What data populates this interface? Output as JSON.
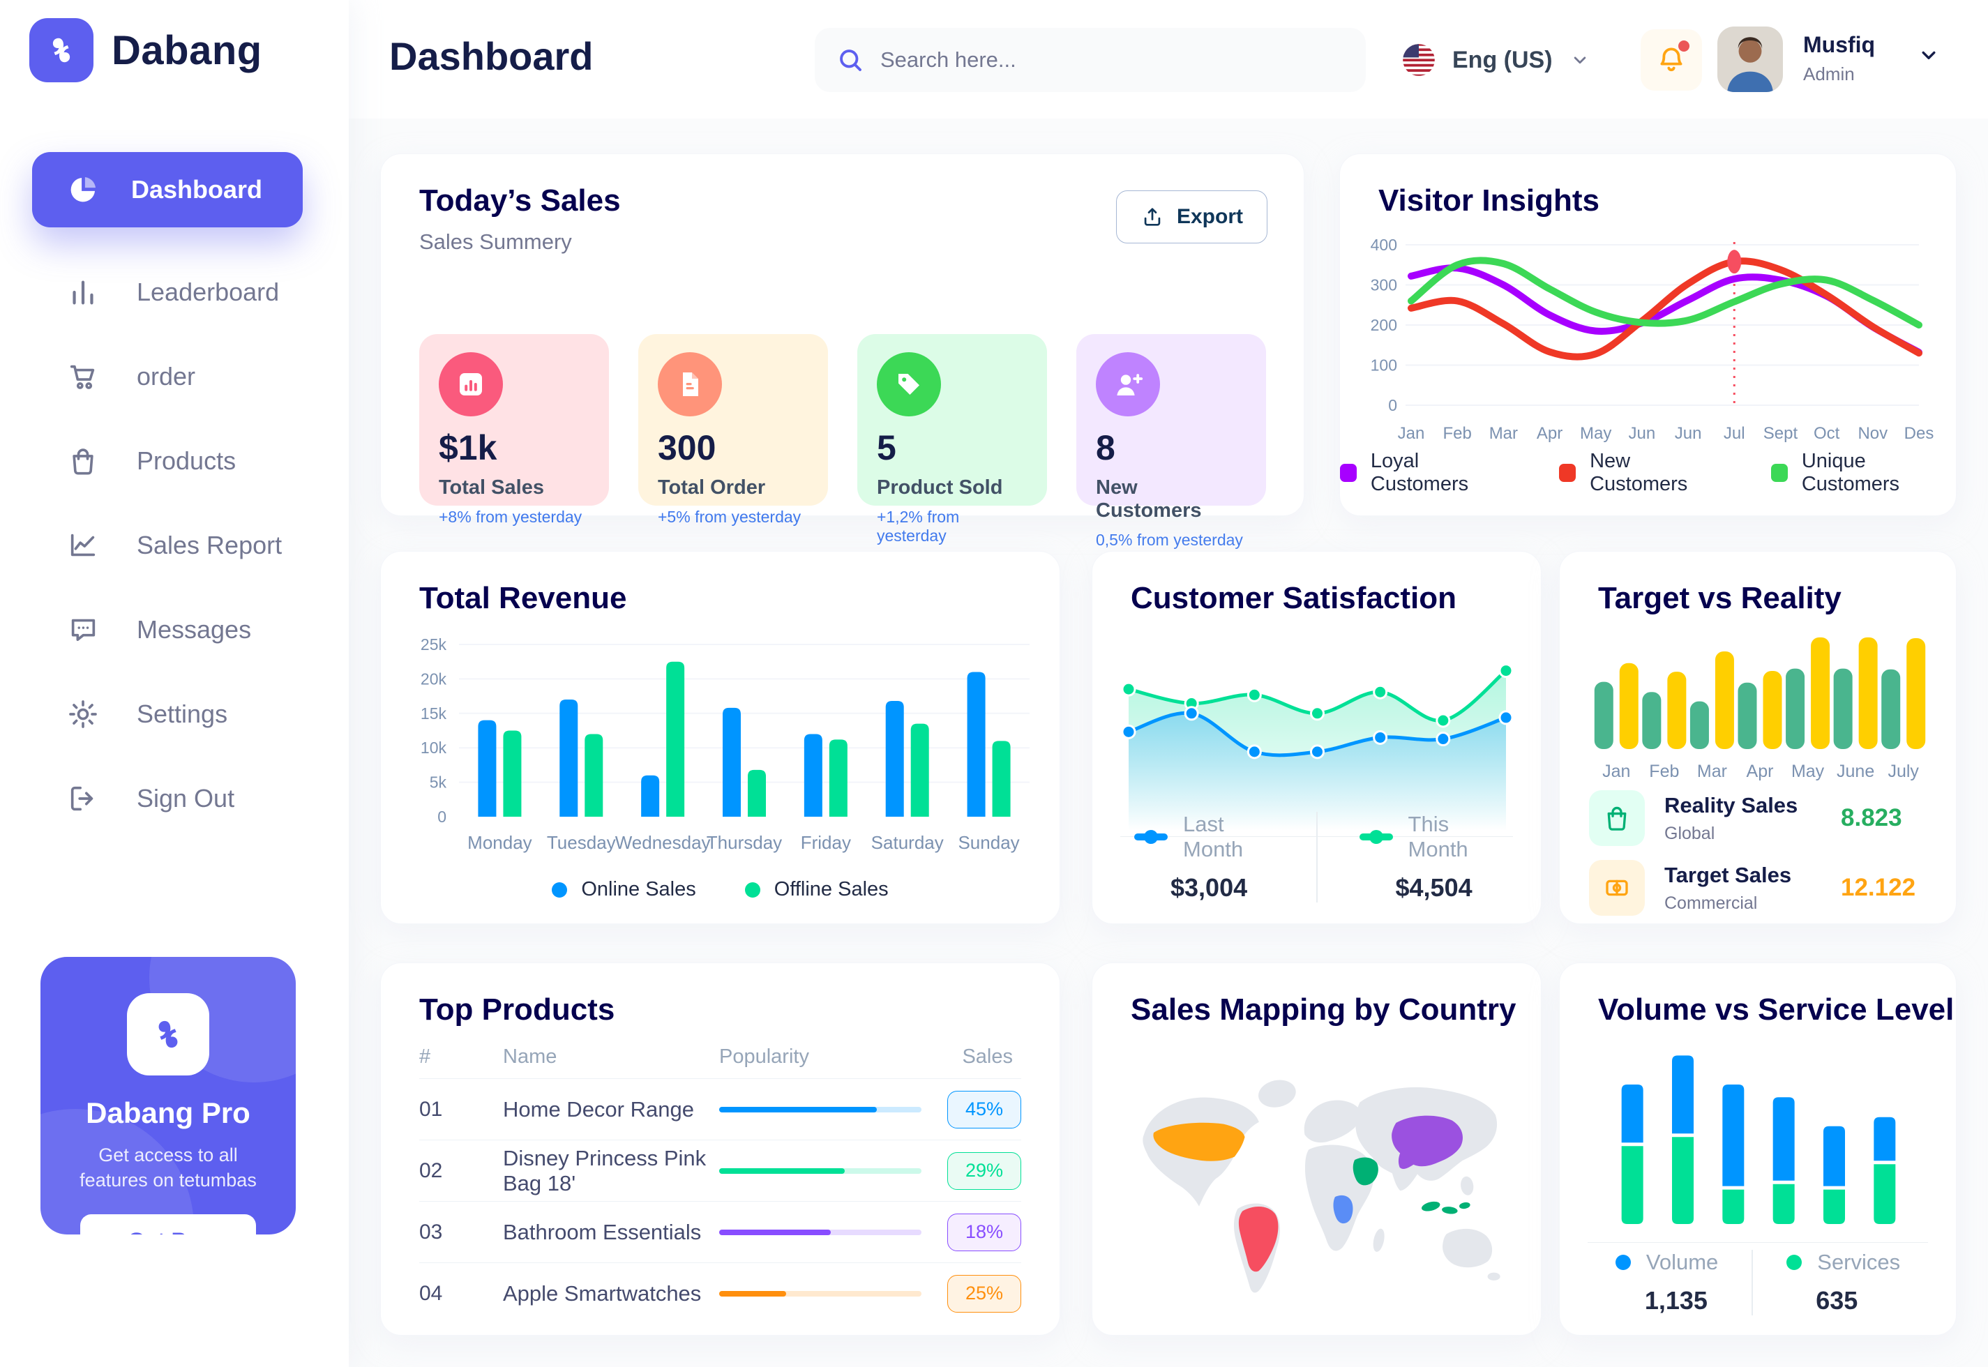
{
  "app": {
    "brand": "Dabang",
    "accent": "#5D5FEF"
  },
  "sidebar": {
    "items": [
      {
        "label": "Dashboard",
        "icon": "pie-chart-icon",
        "active": true
      },
      {
        "label": "Leaderboard",
        "icon": "bar-chart-icon",
        "active": false
      },
      {
        "label": "order",
        "icon": "cart-icon",
        "active": false
      },
      {
        "label": "Products",
        "icon": "bag-icon",
        "active": false
      },
      {
        "label": "Sales Report",
        "icon": "line-chart-icon",
        "active": false
      },
      {
        "label": "Messages",
        "icon": "message-icon",
        "active": false
      },
      {
        "label": "Settings",
        "icon": "gear-icon",
        "active": false
      },
      {
        "label": "Sign Out",
        "icon": "sign-out-icon",
        "active": false
      }
    ],
    "pro": {
      "title": "Dabang Pro",
      "subtitle": "Get access to all features on tetumbas",
      "cta": "Get Pro"
    }
  },
  "header": {
    "title": "Dashboard",
    "search_placeholder": "Search here...",
    "language": "Eng (US)",
    "user": {
      "name": "Musfiq",
      "role": "Admin"
    }
  },
  "today_sales": {
    "title": "Today’s Sales",
    "subtitle": "Sales Summery",
    "export_label": "Export",
    "cards": [
      {
        "value": "$1k",
        "label": "Total Sales",
        "note": "+8% from yesterday",
        "bg": "#FFE2E5",
        "accent": "#FA5A7D",
        "icon": "chart-icon"
      },
      {
        "value": "300",
        "label": "Total Order",
        "note": "+5% from yesterday",
        "bg": "#FFF4DE",
        "accent": "#FF947A",
        "icon": "file-icon"
      },
      {
        "value": "5",
        "label": "Product Sold",
        "note": "+1,2% from yesterday",
        "bg": "#DCFCE7",
        "accent": "#3CD856",
        "icon": "tag-icon"
      },
      {
        "value": "8",
        "label": "New Customers",
        "note": "0,5% from yesterday",
        "bg": "#F3E8FF",
        "accent": "#BF83FF",
        "icon": "user-plus-icon"
      }
    ]
  },
  "chart_data": [
    {
      "id": "visitor_insights",
      "type": "line",
      "title": "Visitor Insights",
      "x": [
        "Jan",
        "Feb",
        "Mar",
        "Apr",
        "May",
        "Jun",
        "Jun",
        "Jul",
        "Sept",
        "Oct",
        "Nov",
        "Des"
      ],
      "ylim": [
        0,
        400
      ],
      "yticks": [
        0,
        100,
        200,
        300,
        400
      ],
      "grid": true,
      "legend_position": "bottom",
      "annotation": {
        "x_index": 7,
        "color": "#F64E60",
        "style": "dashed-vertical-with-dot"
      },
      "series": [
        {
          "name": "Loyal Customers",
          "color": "#A700FF",
          "values": [
            322,
            342,
            300,
            225,
            185,
            205,
            262,
            315,
            312,
            272,
            195,
            132
          ]
        },
        {
          "name": "New Customers",
          "color": "#EF3826",
          "values": [
            242,
            260,
            203,
            133,
            128,
            210,
            303,
            358,
            338,
            275,
            196,
            130
          ]
        },
        {
          "name": "Unique Customers",
          "color": "#3CD856",
          "values": [
            260,
            350,
            353,
            290,
            232,
            206,
            212,
            258,
            302,
            312,
            262,
            200
          ]
        }
      ]
    },
    {
      "id": "total_revenue",
      "type": "bar",
      "title": "Total Revenue",
      "categories": [
        "Monday",
        "Tuesday",
        "Wednesday",
        "Thursday",
        "Friday",
        "Saturday",
        "Sunday"
      ],
      "ylim": [
        0,
        25
      ],
      "yticks_labels": [
        "0",
        "5k",
        "10k",
        "15k",
        "20k",
        "25k"
      ],
      "grid": true,
      "legend_position": "bottom",
      "series": [
        {
          "name": "Online Sales",
          "color": "#0095FF",
          "values": [
            14,
            17,
            6,
            15.8,
            12,
            16.8,
            21
          ]
        },
        {
          "name": "Offline Sales",
          "color": "#00E096",
          "values": [
            12.5,
            12,
            22.5,
            6.8,
            11.2,
            13.5,
            11
          ]
        }
      ]
    },
    {
      "id": "customer_satisfaction",
      "type": "area",
      "title": "Customer Satisfaction",
      "ylim": [
        0,
        100
      ],
      "grid": false,
      "legend_position": "bottom",
      "series": [
        {
          "name": "Last Month",
          "color": "#0095FF",
          "total": "$3,004",
          "values": [
            42,
            55,
            28,
            28,
            38,
            37,
            52
          ]
        },
        {
          "name": "This Month",
          "color": "#00E096",
          "total": "$4,504",
          "values": [
            72,
            62,
            68,
            55,
            70,
            50,
            85
          ]
        }
      ]
    },
    {
      "id": "target_vs_reality",
      "type": "bar",
      "title": "Target vs Reality",
      "categories": [
        "Jan",
        "Feb",
        "Mar",
        "Apr",
        "May",
        "June",
        "July"
      ],
      "ylim": [
        0,
        15
      ],
      "grid": false,
      "legend_position": "bottom-list",
      "series": [
        {
          "name": "Reality Sales",
          "subtitle": "Global",
          "color": "#4AB58E",
          "tile": "#E2FFF3",
          "icon": "bag-icon",
          "value_label": "8.823",
          "value_color": "#27AE60",
          "values": [
            8.6,
            7.3,
            6.1,
            8.5,
            10.3,
            10.3,
            10.2
          ]
        },
        {
          "name": "Target Sales",
          "subtitle": "Commercial",
          "color": "#FFCF00",
          "tile": "#FFF4DE",
          "icon": "ticket-icon",
          "value_label": "12.122",
          "value_color": "#FFA412",
          "values": [
            11,
            9.9,
            12.5,
            10,
            14.3,
            14.3,
            14.2
          ]
        }
      ]
    },
    {
      "id": "volume_service",
      "type": "stacked-bar",
      "title": "Volume vs Service Level",
      "ylim": [
        0,
        100
      ],
      "grid": false,
      "legend_position": "bottom",
      "series": [
        {
          "name": "Volume",
          "color": "#0095FF",
          "total": "1,135",
          "values": [
            32,
            43,
            56,
            46,
            33,
            24
          ]
        },
        {
          "name": "Services",
          "color": "#00E096",
          "total": "635",
          "values": [
            43,
            48,
            19,
            22,
            19,
            33
          ]
        }
      ]
    }
  ],
  "top_products": {
    "title": "Top Products",
    "columns": [
      "#",
      "Name",
      "Popularity",
      "Sales"
    ],
    "rows": [
      {
        "num": "01",
        "name": "Home Decor Range",
        "popularity": 78,
        "sales": "45%",
        "color": "#0095FF",
        "badge_bg": "#EAF6FF"
      },
      {
        "num": "02",
        "name": "Disney Princess Pink Bag 18'",
        "popularity": 62,
        "sales": "29%",
        "color": "#00E096",
        "badge_bg": "#EAFBF4"
      },
      {
        "num": "03",
        "name": "Bathroom Essentials",
        "popularity": 55,
        "sales": "18%",
        "color": "#884DFF",
        "badge_bg": "#F6EEFF"
      },
      {
        "num": "04",
        "name": "Apple Smartwatches",
        "popularity": 33,
        "sales": "25%",
        "color": "#FF8F0D",
        "badge_bg": "#FFF3E3"
      }
    ]
  },
  "sales_map": {
    "title": "Sales Mapping by Country",
    "land_color": "#E4E7EC",
    "countries": [
      {
        "name": "United States",
        "color": "#FFA412"
      },
      {
        "name": "Brazil",
        "color": "#F64E60"
      },
      {
        "name": "China",
        "color": "#9B51E0"
      },
      {
        "name": "Saudi Arabia",
        "color": "#00B074"
      },
      {
        "name": "DR Congo",
        "color": "#5A8DF6"
      },
      {
        "name": "Indonesia",
        "color": "#00B074"
      }
    ]
  }
}
